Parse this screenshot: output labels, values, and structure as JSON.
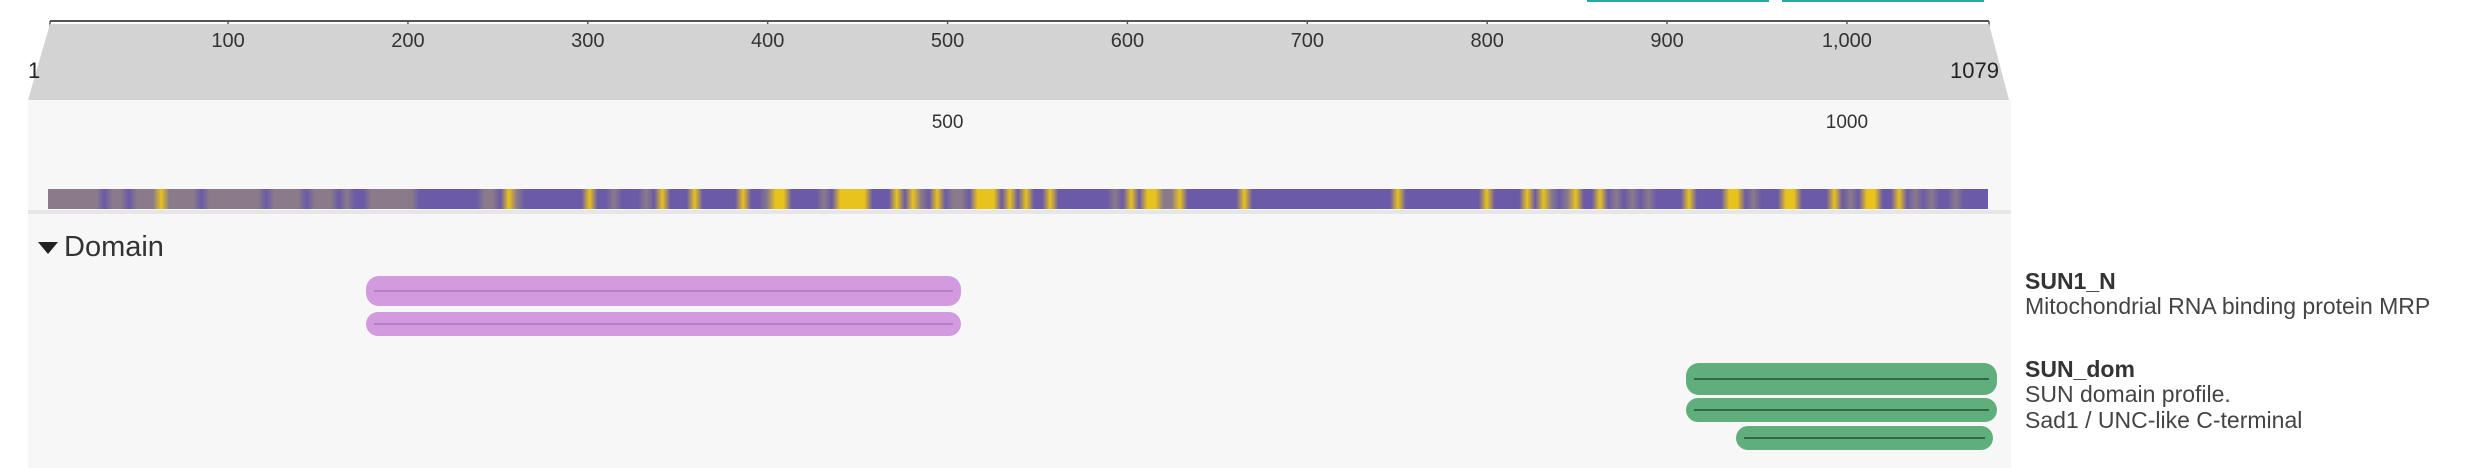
{
  "sequence": {
    "length": 1079,
    "start_label": "1",
    "end_label": "1079"
  },
  "ruler": {
    "ticks": [
      "100",
      "200",
      "300",
      "400",
      "500",
      "600",
      "700",
      "800",
      "900",
      "1,000"
    ],
    "zoom_labels": [
      "500",
      "1000"
    ]
  },
  "colors": {
    "accent_teal": "#2aa5a8",
    "ruler_band": "#d3d3d3",
    "sun1_purple": "#d29be0",
    "sun1_purple_line": "#b67dc8",
    "sun_green": "#5fae7c",
    "sun_green_line": "#2e6b45",
    "conservation_low": "#6a5aa8",
    "conservation_high": "#e8c21d"
  },
  "domain_section": {
    "title": "Domain",
    "toggle_icon": "caret-down-icon",
    "groups": [
      {
        "name": "SUN1_N",
        "descriptions": [
          "Mitochondrial RNA binding protein MRP"
        ],
        "color": "#d29be0",
        "tracks": [
          {
            "start": 181,
            "end": 503
          },
          {
            "start": 181,
            "end": 503
          }
        ]
      },
      {
        "name": "SUN_dom",
        "descriptions": [
          "SUN domain profile.",
          "Sad1 / UNC-like C-terminal"
        ],
        "color": "#5fae7c",
        "tracks": [
          {
            "start": 915,
            "end": 1079
          },
          {
            "start": 915,
            "end": 1079
          },
          {
            "start": 943,
            "end": 1077
          }
        ]
      }
    ]
  }
}
